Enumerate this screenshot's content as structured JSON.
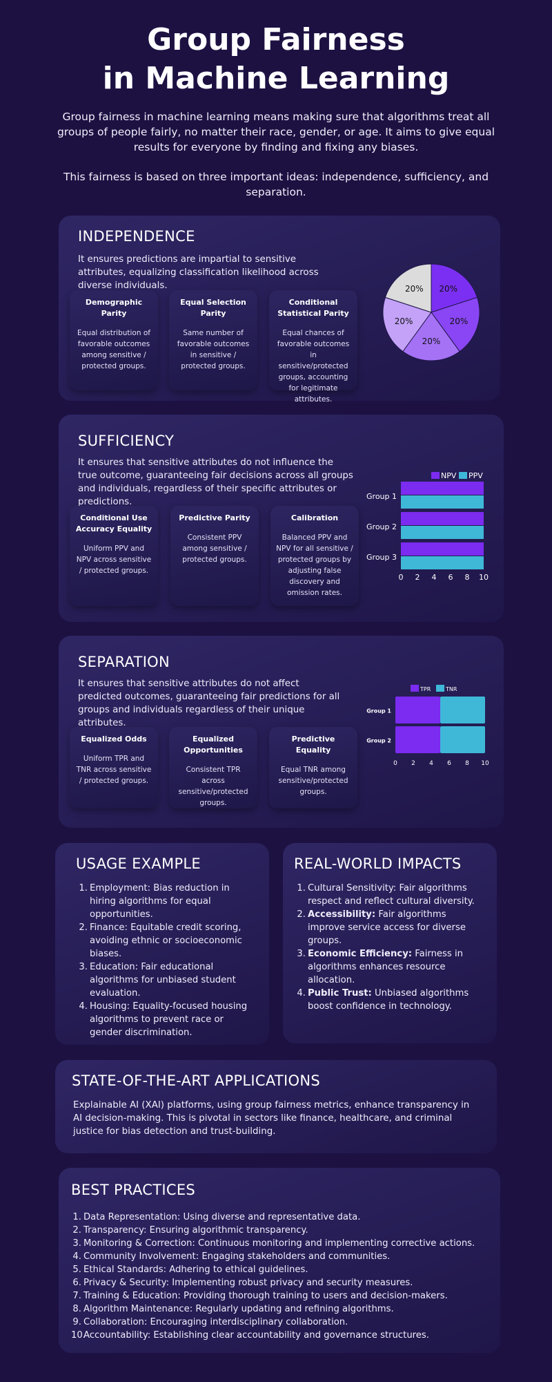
{
  "header": {
    "title_line1": "Group Fairness",
    "title_line2": "in Machine Learning",
    "intro_1": "Group fairness in machine learning means making sure that algorithms treat all groups of people fairly, no matter their race, gender, or age. It aims to give equal results for everyone by finding and fixing any biases.",
    "intro_2": "This fairness is based on three important ideas: independence, sufficiency, and separation."
  },
  "independence": {
    "title": "INDEPENDENCE",
    "description": "It ensures predictions are impartial to sensitive attributes, equalizing classification likelihood across diverse individuals.",
    "items": [
      {
        "title": "Demographic Parity",
        "text": "Equal distribution of favorable outcomes among sensitive / protected groups."
      },
      {
        "title": "Equal Selection Parity",
        "text": "Same number of favorable outcomes in sensitive / protected groups."
      },
      {
        "title": "Conditional Statistical Parity",
        "text": "Equal chances of favorable outcomes in sensitive/protected groups, accounting for legitimate attributes."
      }
    ]
  },
  "sufficiency": {
    "title": "SUFFICIENCY",
    "description": "It ensures that sensitive attributes do not influence the true outcome, guaranteeing fair decisions across all groups and individuals, regardless of their specific attributes or predictions.",
    "items": [
      {
        "title": "Conditional Use Accuracy Equality",
        "text": "Uniform PPV and NPV across sensitive / protected groups."
      },
      {
        "title": "Predictive Parity",
        "text": "Consistent PPV among sensitive / protected groups."
      },
      {
        "title": "Calibration",
        "text": "Balanced PPV and NPV for all sensitive / protected groups by adjusting false discovery and omission rates."
      }
    ]
  },
  "separation": {
    "title": "SEPARATION",
    "description": "It ensures that sensitive attributes do not affect predicted outcomes, guaranteeing fair predictions for all groups and individuals regardless of their unique attributes.",
    "items": [
      {
        "title": "Equalized Odds",
        "text": "Uniform TPR and TNR across sensitive / protected groups."
      },
      {
        "title": "Equalized Opportunities",
        "text": "Consistent TPR across sensitive/protected groups."
      },
      {
        "title": "Predictive Equality",
        "text": "Equal TNR among sensitive/protected groups."
      }
    ]
  },
  "usage": {
    "title": "USAGE EXAMPLE",
    "items": [
      {
        "num": "1.",
        "text": "Employment: Bias reduction in hiring algorithms for equal opportunities."
      },
      {
        "num": "2.",
        "text": "Finance: Equitable credit scoring, avoiding ethnic or socioeconomic biases."
      },
      {
        "num": "3.",
        "text": "Education: Fair educational algorithms for unbiased student evaluation."
      },
      {
        "num": "4.",
        "text": "Housing: Equality-focused housing algorithms to prevent race or gender discrimination."
      }
    ]
  },
  "impacts": {
    "title": "REAL-WORLD IMPACTS",
    "items": [
      {
        "num": "1.",
        "bold": "",
        "text": "Cultural Sensitivity: Fair algorithms respect and reflect cultural diversity."
      },
      {
        "num": "2.",
        "bold": "Accessibility:",
        "text": " Fair algorithms improve service access for diverse groups."
      },
      {
        "num": "3.",
        "bold": "Economic Efficiency:",
        "text": " Fairness in algorithms enhances resource allocation."
      },
      {
        "num": "4.",
        "bold": "Public Trust:",
        "text": " Unbiased algorithms boost confidence in technology."
      }
    ]
  },
  "sota": {
    "title": "STATE-OF-THE-ART APPLICATIONS",
    "text": "Explainable AI (XAI) platforms, using group fairness metrics, enhance transparency in AI decision-making. This is pivotal in sectors like finance, healthcare, and criminal justice for bias detection and trust-building."
  },
  "best_practices": {
    "title": "BEST PRACTICES",
    "items": [
      {
        "num": "1.",
        "text": "Data Representation: Using diverse and representative data."
      },
      {
        "num": "2.",
        "text": "Transparency: Ensuring algorithmic transparency."
      },
      {
        "num": "3.",
        "text": "Monitoring & Correction: Continuous monitoring and implementing corrective actions."
      },
      {
        "num": "4.",
        "text": "Community Involvement: Engaging stakeholders and communities."
      },
      {
        "num": "5.",
        "text": "Ethical Standards: Adhering to ethical guidelines."
      },
      {
        "num": "6.",
        "text": "Privacy & Security: Implementing robust privacy and security measures."
      },
      {
        "num": "7.",
        "text": "Training & Education: Providing thorough training to users and decision-makers."
      },
      {
        "num": "8.",
        "text": "Algorithm Maintenance: Regularly updating and refining algorithms."
      },
      {
        "num": "9.",
        "text": "Collaboration: Encouraging interdisciplinary collaboration."
      },
      {
        "num": "10.",
        "text": "Accountability: Establishing clear accountability and governance structures."
      }
    ]
  },
  "colors": {
    "background": "#1d1142",
    "purple": "#7c2bf0",
    "cyan": "#3fb8d8",
    "pie": [
      "#7b2ff2",
      "#8a46f4",
      "#a572f6",
      "#c3a2f8",
      "#dcdcdc"
    ]
  },
  "chart_data": [
    {
      "type": "pie",
      "slices": [
        {
          "label": "20%",
          "value": 20
        },
        {
          "label": "20%",
          "value": 20
        },
        {
          "label": "20%",
          "value": 20
        },
        {
          "label": "20%",
          "value": 20
        },
        {
          "label": "20%",
          "value": 20
        }
      ]
    },
    {
      "type": "bar",
      "orientation": "horizontal",
      "categories": [
        "Group 1",
        "Group 2",
        "Group 3"
      ],
      "series": [
        {
          "name": "NPV",
          "values": [
            10,
            10,
            10
          ]
        },
        {
          "name": "PPV",
          "values": [
            10,
            10,
            10
          ]
        }
      ],
      "xticks": [
        "0",
        "2",
        "4",
        "6",
        "8",
        "10"
      ],
      "xlim": [
        0,
        10
      ],
      "legend": "top"
    },
    {
      "type": "bar",
      "orientation": "horizontal",
      "stacked": true,
      "categories": [
        "Group 1",
        "Group 2"
      ],
      "series": [
        {
          "name": "TPR",
          "values": [
            5,
            5
          ]
        },
        {
          "name": "TNR",
          "values": [
            5,
            5
          ]
        }
      ],
      "xticks": [
        "0",
        "2",
        "4",
        "6",
        "8",
        "10"
      ],
      "xlim": [
        0,
        10
      ],
      "legend": "top"
    }
  ]
}
